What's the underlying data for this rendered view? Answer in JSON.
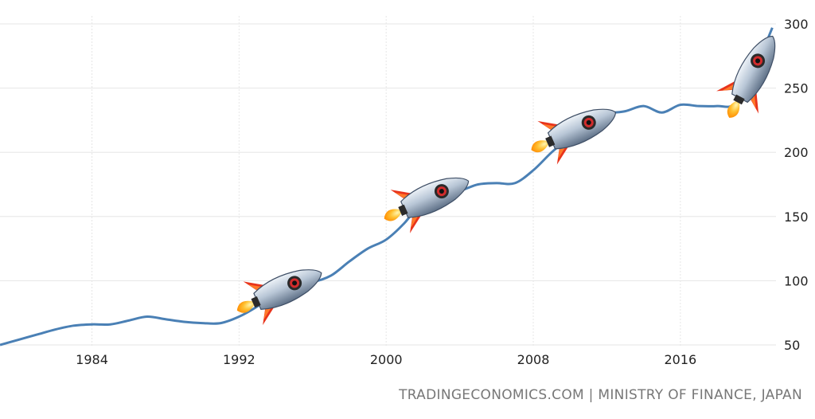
{
  "chart_data": {
    "type": "line",
    "title": "",
    "xlabel": "",
    "ylabel": "",
    "xlim": [
      1979,
      2021.2
    ],
    "ylim": [
      50,
      300
    ],
    "x_ticks": [
      "1984",
      "1992",
      "2000",
      "2008",
      "2016"
    ],
    "x_tick_values": [
      1984,
      1992,
      2000,
      2008,
      2016
    ],
    "y_ticks": [
      "50",
      "100",
      "150",
      "200",
      "250",
      "300"
    ],
    "y_tick_values": [
      50,
      100,
      150,
      200,
      250,
      300
    ],
    "grid": true,
    "line_color": "#4a80b5",
    "series": [
      {
        "x": [
          1979,
          1980,
          1981,
          1982,
          1983,
          1984,
          1985,
          1986,
          1987,
          1988,
          1989,
          1990,
          1991,
          1992,
          1993,
          1994,
          1995,
          1996,
          1997,
          1998,
          1999,
          2000,
          2001,
          2002,
          2003,
          2004,
          2005,
          2006,
          2007,
          2008,
          2009,
          2010,
          2011,
          2012,
          2013,
          2014,
          2015,
          2016,
          2017,
          2018,
          2019,
          2020,
          2021
        ],
        "values": [
          50,
          54,
          58,
          62,
          65,
          66,
          66,
          69,
          72,
          70,
          68,
          67,
          67,
          72,
          80,
          90,
          97,
          99,
          104,
          115,
          125,
          132,
          145,
          162,
          168,
          170,
          175,
          176,
          176,
          186,
          200,
          212,
          225,
          230,
          232,
          236,
          231,
          237,
          236,
          236,
          238,
          263,
          297
        ]
      }
    ],
    "markers": [
      {
        "icon": "rocket-icon",
        "x": 1994.5
      },
      {
        "icon": "rocket-icon",
        "x": 2002.5
      },
      {
        "icon": "rocket-icon",
        "x": 2010.5
      },
      {
        "icon": "rocket-icon",
        "x": 2020
      }
    ]
  },
  "source_text": "TRADINGECONOMICS.COM | MINISTRY OF FINANCE, JAPAN"
}
